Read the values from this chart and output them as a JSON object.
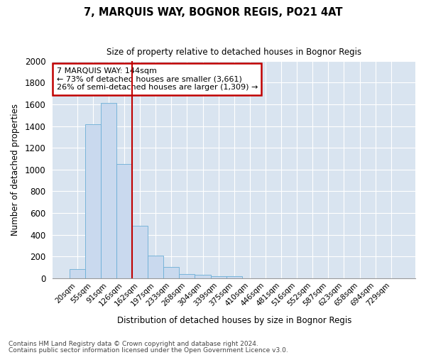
{
  "title1": "7, MARQUIS WAY, BOGNOR REGIS, PO21 4AT",
  "title2": "Size of property relative to detached houses in Bognor Regis",
  "xlabel": "Distribution of detached houses by size in Bognor Regis",
  "ylabel": "Number of detached properties",
  "footnote1": "Contains HM Land Registry data © Crown copyright and database right 2024.",
  "footnote2": "Contains public sector information licensed under the Open Government Licence v3.0.",
  "annotation_line1": "7 MARQUIS WAY: 144sqm",
  "annotation_line2": "← 73% of detached houses are smaller (3,661)",
  "annotation_line3": "26% of semi-detached houses are larger (1,309) →",
  "bar_labels": [
    "20sqm",
    "55sqm",
    "91sqm",
    "126sqm",
    "162sqm",
    "197sqm",
    "233sqm",
    "268sqm",
    "304sqm",
    "339sqm",
    "375sqm",
    "410sqm",
    "446sqm",
    "481sqm",
    "516sqm",
    "552sqm",
    "587sqm",
    "623sqm",
    "658sqm",
    "694sqm",
    "729sqm"
  ],
  "bar_values": [
    80,
    1420,
    1610,
    1050,
    480,
    205,
    105,
    40,
    28,
    20,
    18,
    0,
    0,
    0,
    0,
    0,
    0,
    0,
    0,
    0,
    0
  ],
  "bar_color": "#c9d9ee",
  "bar_edge_color": "#6baed6",
  "marker_color": "#c00000",
  "annotation_box_color": "#ffffff",
  "annotation_box_edge": "#c00000",
  "background_color": "#d9e4f0",
  "grid_color": "#ffffff",
  "ylim": [
    0,
    2000
  ],
  "yticks": [
    0,
    200,
    400,
    600,
    800,
    1000,
    1200,
    1400,
    1600,
    1800,
    2000
  ],
  "fig_width": 6.0,
  "fig_height": 5.0,
  "dpi": 100
}
